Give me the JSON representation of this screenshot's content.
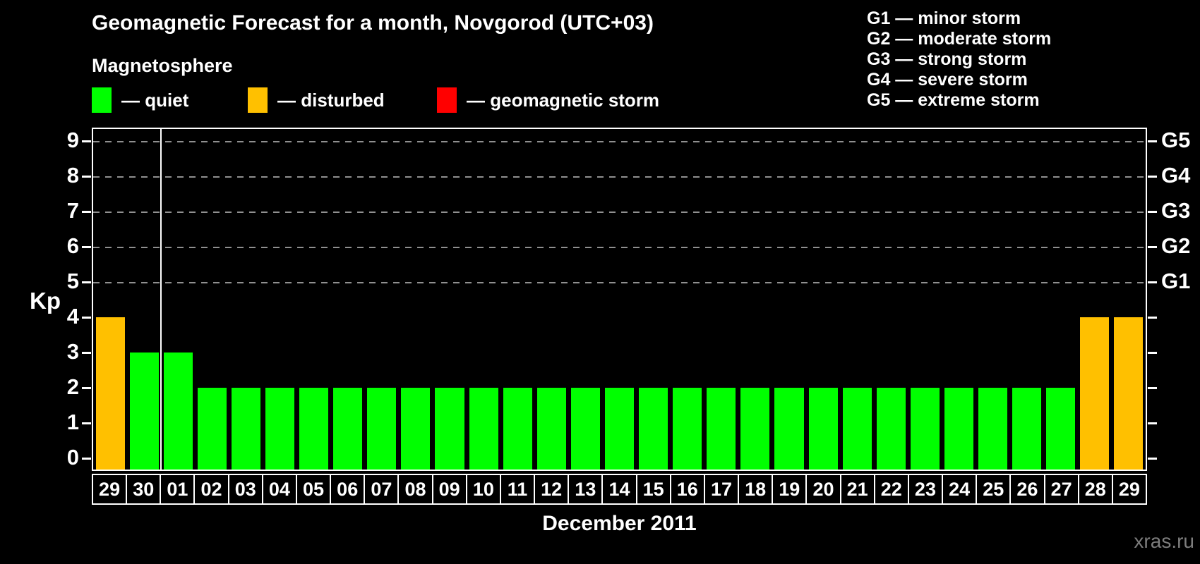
{
  "header": {
    "title": "Geomagnetic Forecast for a month, Novgorod (UTC+03)"
  },
  "magnetosphere": {
    "heading": "Magnetosphere",
    "legend": [
      {
        "key": "quiet",
        "label": "— quiet",
        "color": "#00ff00",
        "x": 130
      },
      {
        "key": "disturbed",
        "label": "— disturbed",
        "color": "#ffc000",
        "x": 351
      },
      {
        "key": "storm",
        "label": "— geomagnetic storm",
        "color": "#ff0000",
        "x": 619
      }
    ]
  },
  "g_scale_legend": [
    "G1 — minor storm",
    "G2 — moderate storm",
    "G3 — strong storm",
    "G4 — severe storm",
    "G5 — extreme storm"
  ],
  "chart_data": {
    "type": "bar",
    "title": "Geomagnetic Forecast for a month, Novgorod (UTC+03)",
    "ylabel": "Kp",
    "xlabel": "December 2011",
    "ylim": [
      0,
      9
    ],
    "yticks": [
      0,
      1,
      2,
      3,
      4,
      5,
      6,
      7,
      8,
      9
    ],
    "gridlines_at": [
      5,
      6,
      7,
      8,
      9
    ],
    "grid_color": "#909090",
    "right_axis_labels": [
      {
        "code": "G1",
        "kp": 5
      },
      {
        "code": "G2",
        "kp": 6
      },
      {
        "code": "G3",
        "kp": 7
      },
      {
        "code": "G4",
        "kp": 8
      },
      {
        "code": "G5",
        "kp": 9
      }
    ],
    "colors": {
      "quiet": "#00ff00",
      "disturbed": "#ffc000",
      "storm": "#ff0000"
    },
    "month_separator_after_index": 1,
    "categories": [
      "29",
      "30",
      "01",
      "02",
      "03",
      "04",
      "05",
      "06",
      "07",
      "08",
      "09",
      "10",
      "11",
      "12",
      "13",
      "14",
      "15",
      "16",
      "17",
      "18",
      "19",
      "20",
      "21",
      "22",
      "23",
      "24",
      "25",
      "26",
      "27",
      "28",
      "29"
    ],
    "values": [
      4,
      3,
      3,
      2,
      2,
      2,
      2,
      2,
      2,
      2,
      2,
      2,
      2,
      2,
      2,
      2,
      2,
      2,
      2,
      2,
      2,
      2,
      2,
      2,
      2,
      2,
      2,
      2,
      2,
      4,
      4
    ],
    "statuses": [
      "disturbed",
      "quiet",
      "quiet",
      "quiet",
      "quiet",
      "quiet",
      "quiet",
      "quiet",
      "quiet",
      "quiet",
      "quiet",
      "quiet",
      "quiet",
      "quiet",
      "quiet",
      "quiet",
      "quiet",
      "quiet",
      "quiet",
      "quiet",
      "quiet",
      "quiet",
      "quiet",
      "quiet",
      "quiet",
      "quiet",
      "quiet",
      "quiet",
      "quiet",
      "disturbed",
      "disturbed"
    ]
  },
  "footer": {
    "watermark": "xras.ru"
  }
}
